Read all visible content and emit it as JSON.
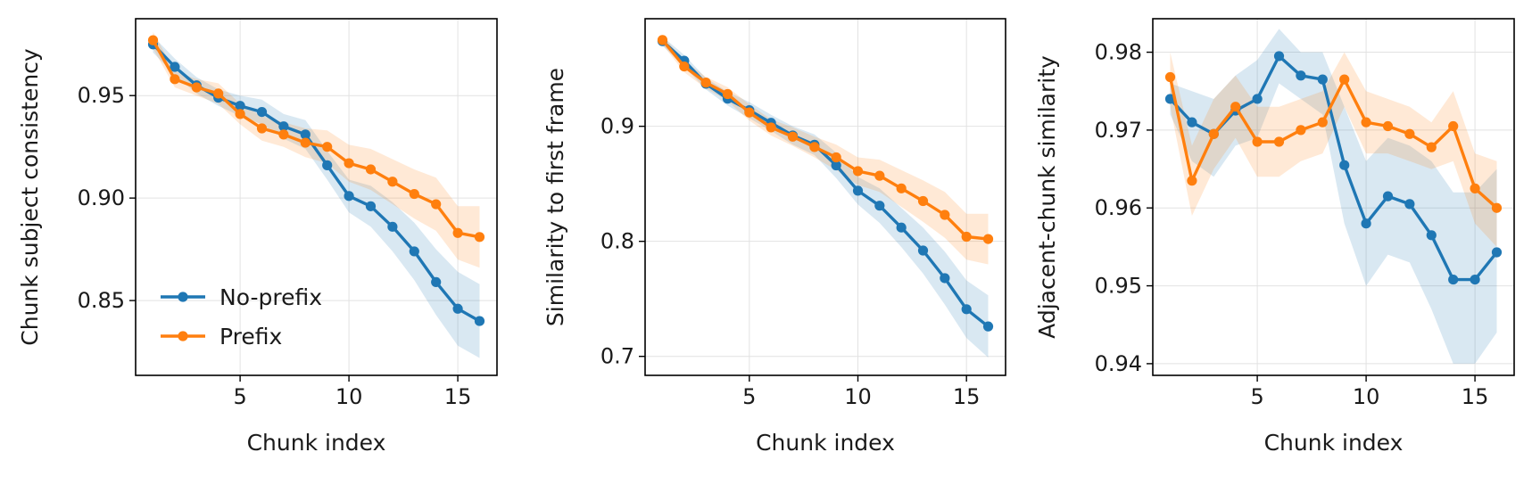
{
  "chart_data": [
    {
      "type": "line",
      "xlabel": "Chunk index",
      "ylabel": "Chunk subject consistency",
      "xlim": [
        0.2,
        16.8
      ],
      "ylim": [
        0.8135,
        0.9875
      ],
      "xticks": [
        5,
        10,
        15
      ],
      "yticks": [
        0.85,
        0.9,
        0.95
      ],
      "ytick_labels": [
        "0.85",
        "0.90",
        "0.95"
      ],
      "grid": true,
      "legend": {
        "visible": true,
        "placement": "lower-left"
      },
      "x": [
        1,
        2,
        3,
        4,
        5,
        6,
        7,
        8,
        9,
        10,
        11,
        12,
        13,
        14,
        15,
        16
      ],
      "series": [
        {
          "name": "No-prefix",
          "color": "#1f77b4",
          "values": [
            0.975,
            0.964,
            0.955,
            0.949,
            0.945,
            0.942,
            0.935,
            0.931,
            0.916,
            0.901,
            0.896,
            0.886,
            0.874,
            0.859,
            0.846,
            0.84
          ],
          "band_low": [
            0.971,
            0.96,
            0.951,
            0.945,
            0.94,
            0.936,
            0.929,
            0.924,
            0.909,
            0.893,
            0.886,
            0.874,
            0.86,
            0.843,
            0.828,
            0.822
          ],
          "band_high": [
            0.979,
            0.968,
            0.959,
            0.953,
            0.95,
            0.948,
            0.941,
            0.938,
            0.923,
            0.909,
            0.906,
            0.898,
            0.888,
            0.875,
            0.864,
            0.858
          ]
        },
        {
          "name": "Prefix",
          "color": "#ff7f0e",
          "values": [
            0.977,
            0.958,
            0.954,
            0.951,
            0.941,
            0.934,
            0.931,
            0.927,
            0.925,
            0.917,
            0.914,
            0.908,
            0.902,
            0.897,
            0.883,
            0.881
          ],
          "band_low": [
            0.973,
            0.954,
            0.95,
            0.946,
            0.936,
            0.928,
            0.925,
            0.92,
            0.917,
            0.908,
            0.904,
            0.897,
            0.89,
            0.884,
            0.87,
            0.866
          ],
          "band_high": [
            0.981,
            0.962,
            0.958,
            0.956,
            0.946,
            0.94,
            0.937,
            0.934,
            0.933,
            0.926,
            0.924,
            0.919,
            0.914,
            0.91,
            0.896,
            0.896
          ]
        }
      ]
    },
    {
      "type": "line",
      "xlabel": "Chunk index",
      "ylabel": "Similarity to first frame",
      "xlim": [
        0.2,
        16.8
      ],
      "ylim": [
        0.6835,
        0.9935
      ],
      "xticks": [
        5,
        10,
        15
      ],
      "yticks": [
        0.7,
        0.8,
        0.9
      ],
      "ytick_labels": [
        "0.7",
        "0.8",
        "0.9"
      ],
      "grid": true,
      "legend": {
        "visible": false
      },
      "x": [
        1,
        2,
        3,
        4,
        5,
        6,
        7,
        8,
        9,
        10,
        11,
        12,
        13,
        14,
        15,
        16
      ],
      "series": [
        {
          "name": "No-prefix",
          "color": "#1f77b4",
          "values": [
            0.974,
            0.957,
            0.937,
            0.924,
            0.914,
            0.903,
            0.892,
            0.884,
            0.866,
            0.844,
            0.831,
            0.812,
            0.792,
            0.768,
            0.741,
            0.726
          ],
          "band_low": [
            0.97,
            0.952,
            0.932,
            0.918,
            0.907,
            0.896,
            0.884,
            0.875,
            0.855,
            0.832,
            0.816,
            0.795,
            0.772,
            0.745,
            0.716,
            0.699
          ],
          "band_high": [
            0.978,
            0.962,
            0.942,
            0.93,
            0.921,
            0.91,
            0.9,
            0.893,
            0.877,
            0.856,
            0.846,
            0.829,
            0.812,
            0.791,
            0.766,
            0.753
          ]
        },
        {
          "name": "Prefix",
          "color": "#ff7f0e",
          "values": [
            0.975,
            0.952,
            0.938,
            0.928,
            0.912,
            0.899,
            0.891,
            0.882,
            0.873,
            0.861,
            0.857,
            0.846,
            0.835,
            0.823,
            0.804,
            0.802
          ],
          "band_low": [
            0.971,
            0.947,
            0.933,
            0.922,
            0.905,
            0.892,
            0.883,
            0.873,
            0.862,
            0.849,
            0.843,
            0.83,
            0.817,
            0.803,
            0.784,
            0.78
          ],
          "band_high": [
            0.979,
            0.957,
            0.943,
            0.934,
            0.919,
            0.906,
            0.899,
            0.891,
            0.884,
            0.873,
            0.871,
            0.862,
            0.853,
            0.843,
            0.824,
            0.824
          ]
        }
      ]
    },
    {
      "type": "line",
      "xlabel": "Chunk index",
      "ylabel": "Adjacent-chunk similarity",
      "xlim": [
        0.2,
        16.8
      ],
      "ylim": [
        0.9385,
        0.9843
      ],
      "xticks": [
        5,
        10,
        15
      ],
      "yticks": [
        0.94,
        0.95,
        0.96,
        0.97,
        0.98
      ],
      "ytick_labels": [
        "0.94",
        "0.95",
        "0.96",
        "0.97",
        "0.98"
      ],
      "grid": true,
      "legend": {
        "visible": false
      },
      "x": [
        1,
        2,
        3,
        4,
        5,
        6,
        7,
        8,
        9,
        10,
        11,
        12,
        13,
        14,
        15,
        16
      ],
      "series": [
        {
          "name": "No-prefix",
          "color": "#1f77b4",
          "values": [
            0.974,
            0.971,
            0.9695,
            0.9725,
            0.974,
            0.9795,
            0.977,
            0.9765,
            0.9655,
            0.958,
            0.9615,
            0.9605,
            0.9565,
            0.9508,
            0.9508,
            0.9543
          ],
          "band_low": [
            0.972,
            0.966,
            0.964,
            0.968,
            0.969,
            0.976,
            0.974,
            0.972,
            0.958,
            0.95,
            0.954,
            0.953,
            0.947,
            0.94,
            0.94,
            0.944
          ],
          "band_high": [
            0.976,
            0.975,
            0.974,
            0.977,
            0.979,
            0.983,
            0.98,
            0.98,
            0.973,
            0.966,
            0.969,
            0.968,
            0.966,
            0.962,
            0.962,
            0.965
          ]
        },
        {
          "name": "Prefix",
          "color": "#ff7f0e",
          "values": [
            0.9768,
            0.9635,
            0.9695,
            0.973,
            0.9685,
            0.9685,
            0.97,
            0.971,
            0.9765,
            0.971,
            0.9705,
            0.9695,
            0.9678,
            0.9705,
            0.9625,
            0.96
          ],
          "band_low": [
            0.973,
            0.959,
            0.965,
            0.969,
            0.964,
            0.964,
            0.966,
            0.967,
            0.973,
            0.967,
            0.967,
            0.966,
            0.965,
            0.966,
            0.958,
            0.955
          ],
          "band_high": [
            0.98,
            0.968,
            0.974,
            0.977,
            0.973,
            0.973,
            0.974,
            0.975,
            0.98,
            0.975,
            0.974,
            0.973,
            0.971,
            0.975,
            0.967,
            0.966
          ]
        }
      ]
    }
  ]
}
